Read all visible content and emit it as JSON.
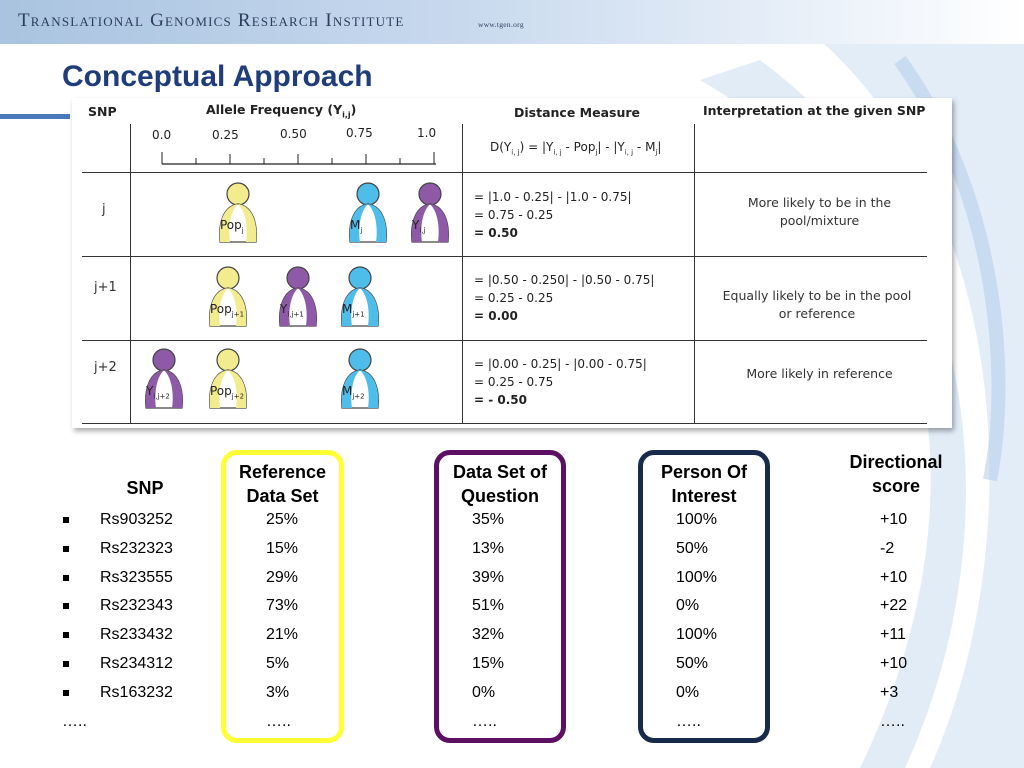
{
  "header": {
    "institute": "Translational Genomics Research Institute",
    "url": "www.tgen.org"
  },
  "title": "Conceptual Approach",
  "figure": {
    "head_snp": "SNP",
    "head_allele": "Allele Frequency (Y",
    "head_allele_sub": "i,j",
    "head_allele_end": ")",
    "head_distance": "Distance Measure",
    "head_interp": "Interpretation at the given SNP",
    "ticks": [
      "0.0",
      "0.25",
      "0.50",
      "0.75",
      "1.0"
    ],
    "formula": {
      "a": "D(Y",
      "a_sub": "i, j",
      "b": ") = |Y",
      "b_sub": "i, j",
      "c": " - Pop",
      "c_sub": "j",
      "d": "| - |Y",
      "d_sub": "i, j",
      "e": " - M",
      "e_sub": "j",
      "f": "|"
    },
    "rows": [
      {
        "snp": "j",
        "eq": [
          "= |1.0 - 0.25| - |1.0 - 0.75|",
          "= 0.75 - 0.25",
          "= 0.50"
        ],
        "interp": [
          "More likely to be in the",
          "pool/mixture"
        ],
        "people": [
          {
            "label": "Pop",
            "sub": "j",
            "kind": "pop"
          },
          {
            "label": "M",
            "sub": "j",
            "kind": "m"
          },
          {
            "label": "Y",
            "sub": "i,j",
            "kind": "y"
          }
        ]
      },
      {
        "snp": "j+1",
        "eq": [
          "= |0.50 - 0.250| - |0.50 - 0.75|",
          "= 0.25 - 0.25",
          "= 0.00"
        ],
        "interp": [
          "Equally likely to be in the pool",
          "or reference"
        ],
        "people": [
          {
            "label": "Pop",
            "sub": "j+1",
            "kind": "pop"
          },
          {
            "label": "Y",
            "sub": "i,j+1",
            "kind": "y"
          },
          {
            "label": "M",
            "sub": "j+1",
            "kind": "m"
          }
        ]
      },
      {
        "snp": "j+2",
        "eq": [
          "= |0.00 - 0.25| - |0.00 - 0.75|",
          "= 0.25 - 0.75",
          "= - 0.50"
        ],
        "interp": [
          "More likely in reference"
        ],
        "people": [
          {
            "label": "Y",
            "sub": "i,j+2",
            "kind": "y"
          },
          {
            "label": "Pop",
            "sub": "j+2",
            "kind": "pop"
          },
          {
            "label": "M",
            "sub": "j+2",
            "kind": "m"
          }
        ]
      }
    ],
    "colors": {
      "pop": "#f3ec8e",
      "m": "#4fbde9",
      "y": "#8e5aa7"
    }
  },
  "table": {
    "headers": {
      "snp": "SNP",
      "reference": [
        "Reference",
        "Data Set"
      ],
      "dataset": [
        "Data Set of",
        "Question"
      ],
      "person": [
        "Person Of",
        "Interest"
      ],
      "score": [
        "Directional",
        "score"
      ]
    },
    "rows": [
      {
        "snp": "Rs903252",
        "ref": "25%",
        "ds": "35%",
        "poi": "100%",
        "score": "+10"
      },
      {
        "snp": "Rs232323",
        "ref": "15%",
        "ds": "13%",
        "poi": "50%",
        "score": "-2"
      },
      {
        "snp": "Rs323555",
        "ref": "29%",
        "ds": "39%",
        "poi": "100%",
        "score": "+10"
      },
      {
        "snp": "Rs232343",
        "ref": "73%",
        "ds": "51%",
        "poi": "0%",
        "score": "+22"
      },
      {
        "snp": "Rs233432",
        "ref": "21%",
        "ds": "32%",
        "poi": "100%",
        "score": "+11"
      },
      {
        "snp": "Rs234312",
        "ref": "5%",
        "ds": "15%",
        "poi": "50%",
        "score": "+10"
      },
      {
        "snp": "Rs163232",
        "ref": "3%",
        "ds": "0%",
        "poi": "0%",
        "score": "+3"
      }
    ],
    "ellipsis_left": "…..",
    "ellipsis": "…..",
    "box_colors": {
      "reference": "#ffff33",
      "dataset": "#5c0f63",
      "person": "#172a4a"
    }
  }
}
